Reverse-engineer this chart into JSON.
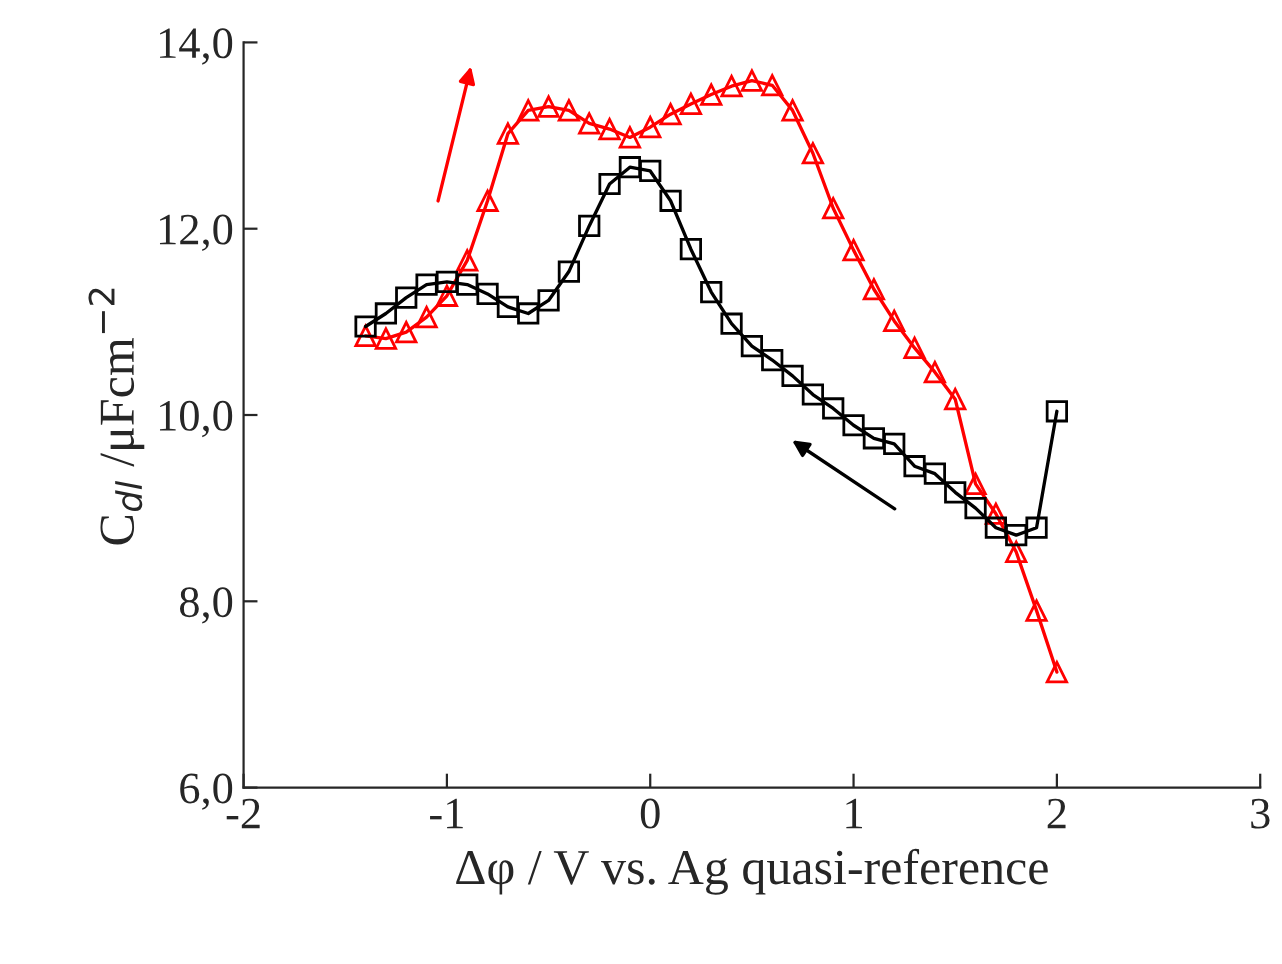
{
  "chart_data": {
    "type": "line",
    "xlabel": "Δφ / V vs. Ag quasi-reference",
    "ylabel": "C$_{dl}$ /μFcm$^{−2}$",
    "x": [
      -1.4,
      -1.3,
      -1.2,
      -1.1,
      -1.0,
      -0.9,
      -0.8,
      -0.7,
      -0.6,
      -0.5,
      -0.4,
      -0.3,
      -0.2,
      -0.1,
      0.0,
      0.1,
      0.2,
      0.3,
      0.4,
      0.5,
      0.6,
      0.7,
      0.8,
      0.9,
      1.0,
      1.1,
      1.2,
      1.3,
      1.4,
      1.5,
      1.6,
      1.7,
      1.8,
      1.9,
      2.0
    ],
    "series": [
      {
        "color": "#ff0000",
        "marker": "triangle",
        "values": [
          10.85,
          10.82,
          10.89,
          11.05,
          11.28,
          11.66,
          12.3,
          13.02,
          13.27,
          13.31,
          13.27,
          13.13,
          13.07,
          12.98,
          13.09,
          13.23,
          13.34,
          13.44,
          13.53,
          13.59,
          13.54,
          13.27,
          12.81,
          12.22,
          11.77,
          11.35,
          11.01,
          10.72,
          10.46,
          10.17,
          9.26,
          8.94,
          8.53,
          7.9,
          7.24
        ]
      },
      {
        "color": "#000000",
        "marker": "square",
        "values": [
          10.95,
          11.09,
          11.26,
          11.4,
          11.43,
          11.4,
          11.3,
          11.16,
          11.09,
          11.23,
          11.54,
          12.03,
          12.48,
          12.66,
          12.62,
          12.3,
          11.78,
          11.32,
          10.98,
          10.74,
          10.59,
          10.42,
          10.22,
          10.07,
          9.89,
          9.75,
          9.69,
          9.45,
          9.37,
          9.17,
          9.0,
          8.79,
          8.71,
          8.79,
          10.04
        ]
      }
    ],
    "xlim": [
      -2,
      3
    ],
    "xticks": [
      {
        "value": -2,
        "label": "-2"
      },
      {
        "value": -1,
        "label": "-1"
      },
      0,
      1,
      2,
      3
    ],
    "ylim": [
      6,
      14
    ],
    "yticks": [
      {
        "value": 6,
        "label": "6,0"
      },
      {
        "value": 8,
        "label": "8,0"
      },
      {
        "value": 10,
        "label": "10,0"
      },
      {
        "value": 12,
        "label": "12,0"
      },
      {
        "value": 14,
        "label": "14,0"
      }
    ],
    "grid": false,
    "legend": false
  }
}
